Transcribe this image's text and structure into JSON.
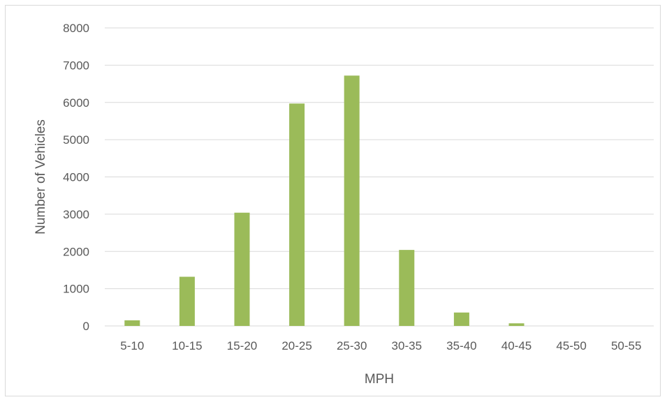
{
  "chart_data": {
    "type": "bar",
    "title": "",
    "xlabel": "MPH",
    "ylabel": "Number of Vehicles",
    "categories": [
      "5-10",
      "10-15",
      "15-20",
      "20-25",
      "25-30",
      "30-35",
      "35-40",
      "40-45",
      "45-50",
      "50-55"
    ],
    "values": [
      150,
      1320,
      3040,
      5970,
      6720,
      2040,
      360,
      70,
      0,
      0
    ],
    "ylim": [
      0,
      8000
    ],
    "yticks": [
      0,
      1000,
      2000,
      3000,
      4000,
      5000,
      6000,
      7000,
      8000
    ],
    "grid": true,
    "legend": "none",
    "colors": {
      "bar": "#9bbb59",
      "grid": "#d9d9d9",
      "text": "#595959"
    }
  }
}
